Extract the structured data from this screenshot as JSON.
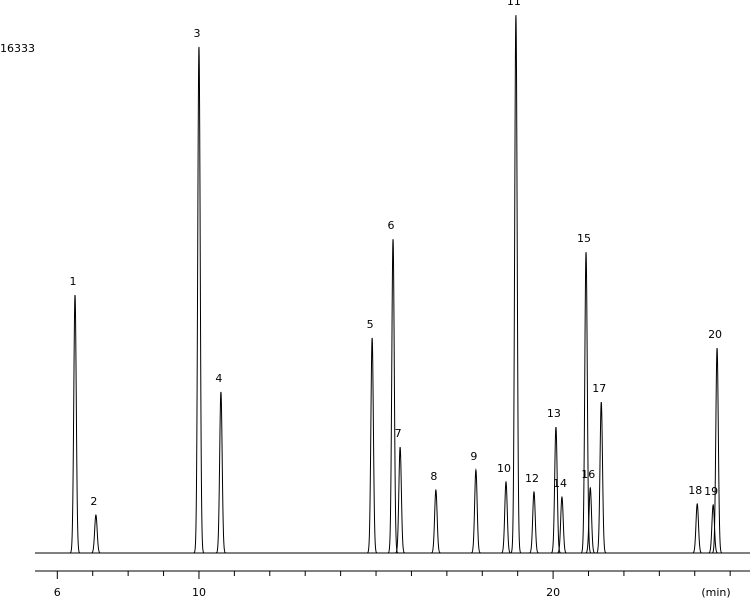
{
  "chart_data": {
    "type": "chromatogram",
    "ylim": [
      0,
      16333
    ],
    "yticks": [
      16333
    ],
    "xlim": [
      5.37,
      25.56
    ],
    "xticks": [
      6,
      10,
      20
    ],
    "minor_xticks": [
      7,
      8,
      9,
      11,
      12,
      13,
      14,
      15,
      16,
      17,
      18,
      19,
      21,
      22,
      23,
      24,
      25
    ],
    "x_label": "(min)",
    "color": "#000000",
    "peaks": [
      {
        "label": "1",
        "time": 6.5,
        "height": 8360
      },
      {
        "label": "2",
        "time": 7.09,
        "height": 1230
      },
      {
        "label": "3",
        "time": 10.0,
        "height": 16400
      },
      {
        "label": "4",
        "time": 10.62,
        "height": 5220
      },
      {
        "label": "5",
        "time": 14.89,
        "height": 6970
      },
      {
        "label": "6",
        "time": 15.48,
        "height": 10170
      },
      {
        "label": "7",
        "time": 15.68,
        "height": 3430
      },
      {
        "label": "8",
        "time": 16.69,
        "height": 2040
      },
      {
        "label": "9",
        "time": 17.82,
        "height": 2690
      },
      {
        "label": "10",
        "time": 18.67,
        "height": 2300
      },
      {
        "label": "11",
        "time": 18.95,
        "height": 17430
      },
      {
        "label": "12",
        "time": 19.46,
        "height": 1980
      },
      {
        "label": "13",
        "time": 20.08,
        "height": 4080
      },
      {
        "label": "14",
        "time": 20.25,
        "height": 1810
      },
      {
        "label": "15",
        "time": 20.93,
        "height": 9750
      },
      {
        "label": "16",
        "time": 21.05,
        "height": 2110
      },
      {
        "label": "17",
        "time": 21.36,
        "height": 4890
      },
      {
        "label": "18",
        "time": 24.07,
        "height": 1590
      },
      {
        "label": "19",
        "time": 24.52,
        "height": 1560
      },
      {
        "label": "20",
        "time": 24.63,
        "height": 6640
      }
    ]
  }
}
